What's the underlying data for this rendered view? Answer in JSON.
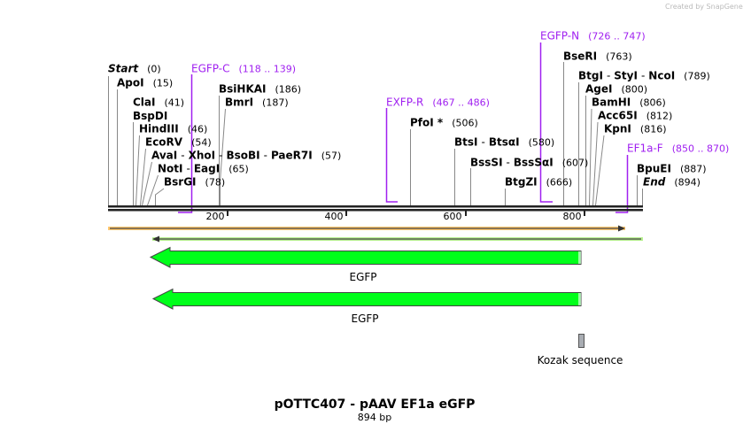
{
  "watermark": "Created by SnapGene",
  "title": "pOTTC407 - pAAV EF1a eGFP",
  "length": "894 bp",
  "ruler": {
    "ticks": [
      "200",
      "400",
      "600",
      "800"
    ]
  },
  "sites": [
    {
      "name": "Start",
      "pos": "(0)"
    },
    {
      "name": "ApoI",
      "pos": "(15)"
    },
    {
      "name": "ClaI",
      "pos": "(41)"
    },
    {
      "name": "BspDI",
      "pos": ""
    },
    {
      "name": "HindIII",
      "pos": "(46)"
    },
    {
      "name": "EcoRV",
      "pos": "(54)"
    },
    {
      "names": [
        "AvaI",
        "XhoI",
        "BsoBI",
        "PaeR7I"
      ],
      "pos": "(57)"
    },
    {
      "names": [
        "NotI",
        "EagI"
      ],
      "pos": "(65)"
    },
    {
      "name": "BsrGI",
      "pos": "(78)"
    },
    {
      "name": "BsiHKAI",
      "pos": "(186)"
    },
    {
      "name": "BmrI",
      "pos": "(187)"
    },
    {
      "name": "PfoI *",
      "pos": "(506)"
    },
    {
      "names": [
        "BtsI",
        "BtsαI"
      ],
      "pos": "(580)"
    },
    {
      "names": [
        "BssSI",
        "BssSαI"
      ],
      "pos": "(607)"
    },
    {
      "name": "BtgZI",
      "pos": "(666)"
    },
    {
      "name": "BseRI",
      "pos": "(763)"
    },
    {
      "names": [
        "BtgI",
        "StyI",
        "NcoI"
      ],
      "pos": "(789)"
    },
    {
      "name": "AgeI",
      "pos": "(800)"
    },
    {
      "name": "BamHI",
      "pos": "(806)"
    },
    {
      "name": "Acc65I",
      "pos": "(812)"
    },
    {
      "name": "KpnI",
      "pos": "(816)"
    },
    {
      "name": "BpuEI",
      "pos": "(887)"
    },
    {
      "name": "End",
      "pos": "(894)"
    }
  ],
  "sep": "-",
  "primers": [
    {
      "name": "EGFP-C",
      "range": "(118 .. 139)"
    },
    {
      "name": "EXFP-R",
      "range": "(467 .. 486)"
    },
    {
      "name": "EGFP-N",
      "range": "(726 .. 747)"
    },
    {
      "name": "EF1a-F",
      "range": "(850 .. 870)"
    }
  ],
  "features": [
    {
      "name": "EGFP"
    },
    {
      "name": "EGFP"
    },
    {
      "name": "Kozak sequence"
    }
  ],
  "colors": {
    "primer": "#a020f0",
    "egfp": "#00ff1a",
    "orf_orange": "#ffc870",
    "orf_green": "#b8f090",
    "kozak": "#a9adb3"
  }
}
